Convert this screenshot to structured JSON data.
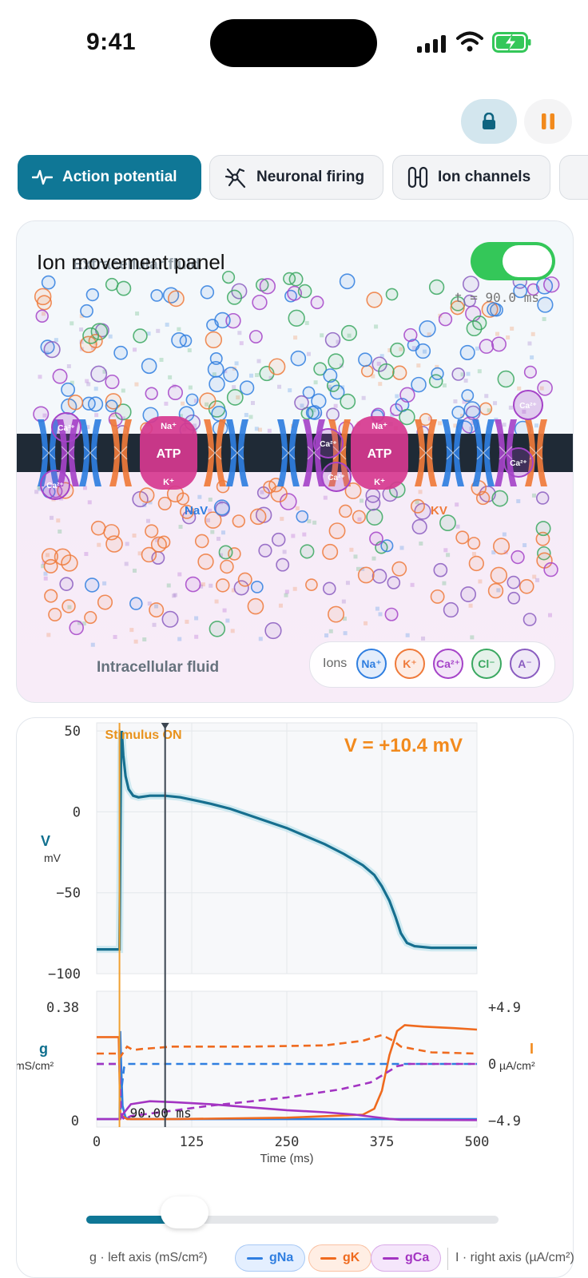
{
  "status_bar": {
    "time": "9:41"
  },
  "controls": {
    "lock_icon": "lock-icon",
    "pause_icon": "pause-icon"
  },
  "tabs": [
    {
      "label": "Action potential",
      "icon": "pulse-icon",
      "active": true
    },
    {
      "label": "Neuronal firing",
      "icon": "neuron-icon",
      "active": false
    },
    {
      "label": "Ion channels",
      "icon": "channel-icon",
      "active": false
    }
  ],
  "ion_panel": {
    "title": "Ion movement panel",
    "extracellular_label": "Extracellular fluid",
    "intracellular_label": "Intracellular fluid",
    "time_readout": "t = 90.0 ms",
    "toggle_on": true,
    "pump_label": "ATP",
    "channel_labels": {
      "nav": "NaV",
      "kv": "KV"
    },
    "pump_ion_labels": {
      "na": "Na⁺",
      "k": "K⁺",
      "ca": "Ca²⁺"
    },
    "legend": {
      "label": "Ions",
      "items": [
        {
          "name": "Na⁺",
          "color": "#2f7ee0"
        },
        {
          "name": "K⁺",
          "color": "#ef7a3a"
        },
        {
          "name": "Ca²⁺",
          "color": "#a543c8"
        },
        {
          "name": "Cl⁻",
          "color": "#3aa860"
        },
        {
          "name": "A⁻",
          "color": "#8a5cc0"
        }
      ]
    },
    "colors": {
      "membrane": "#1f2a36",
      "na": "#2f7ee0",
      "k": "#ef7a3a",
      "ca": "#a543c8",
      "cl": "#3aa860",
      "pump": "#d6388f"
    }
  },
  "chart_data": [
    {
      "type": "line",
      "title": "",
      "ylabel": "V",
      "yunit": "mV",
      "xlim": [
        0,
        500
      ],
      "ylim": [
        -100,
        55
      ],
      "yticks": [
        "50",
        "0",
        "−50",
        "−100"
      ],
      "yticks_values": [
        50,
        0,
        -50,
        -100
      ],
      "readout": "V = +10.4 mV",
      "stimulus_label": "Stimulus ON",
      "stimulus_time": 30,
      "cursor_time": 90,
      "grid": true,
      "series": [
        {
          "values": [
            [
              0,
              -85
            ],
            [
              29,
              -85
            ],
            [
              30,
              -85
            ],
            [
              31,
              -20
            ],
            [
              32,
              40
            ],
            [
              33,
              50
            ],
            [
              35,
              35
            ],
            [
              38,
              22
            ],
            [
              42,
              14
            ],
            [
              48,
              10
            ],
            [
              55,
              9
            ],
            [
              70,
              10
            ],
            [
              90,
              10
            ],
            [
              110,
              9
            ],
            [
              130,
              7
            ],
            [
              150,
              5
            ],
            [
              175,
              2
            ],
            [
              200,
              -2
            ],
            [
              225,
              -6
            ],
            [
              250,
              -10
            ],
            [
              275,
              -15
            ],
            [
              300,
              -20
            ],
            [
              325,
              -26
            ],
            [
              350,
              -33
            ],
            [
              365,
              -39
            ],
            [
              375,
              -46
            ],
            [
              385,
              -55
            ],
            [
              393,
              -65
            ],
            [
              400,
              -75
            ],
            [
              408,
              -81
            ],
            [
              418,
              -83
            ],
            [
              440,
              -84
            ],
            [
              470,
              -84
            ],
            [
              500,
              -84
            ]
          ]
        }
      ]
    },
    {
      "type": "line",
      "ylabel": "g",
      "yunit": "mS/cm²",
      "y2label": "I",
      "y2unit": "µA/cm²",
      "xlabel": "Time (ms)",
      "xlim": [
        0,
        500
      ],
      "ylim": [
        0,
        0.38
      ],
      "y2lim": [
        -4.9,
        4.9
      ],
      "xticks": [
        "0",
        "125",
        "250",
        "375",
        "500"
      ],
      "xticks_values": [
        0,
        125,
        250,
        375,
        500
      ],
      "yticks": [
        "0.38",
        "0"
      ],
      "yticks_values": [
        0.38,
        0
      ],
      "y2ticks": [
        "+4.9",
        "0",
        "−4.9"
      ],
      "y2ticks_values": [
        4.9,
        0,
        -4.9
      ],
      "cursor_label": "90.00 ms",
      "cursor_time": 90,
      "axis_note": "g · left axis (mS/cm²)",
      "axis_note_right": "I · right axis (µA/cm²)",
      "series": [
        {
          "name": "gNa",
          "color": "#2f7ee0",
          "dash": false,
          "axis": "left",
          "values": [
            [
              0,
              0.005
            ],
            [
              30,
              0.005
            ],
            [
              31,
              0.3
            ],
            [
              32,
              0.2
            ],
            [
              34,
              0.05
            ],
            [
              38,
              0.01
            ],
            [
              45,
              0.005
            ],
            [
              500,
              0.005
            ]
          ]
        },
        {
          "name": "gK",
          "color": "#ef6a1e",
          "dash": false,
          "axis": "left",
          "values": [
            [
              0,
              0.28
            ],
            [
              29,
              0.28
            ],
            [
              31,
              0.02
            ],
            [
              40,
              0.005
            ],
            [
              100,
              0.005
            ],
            [
              250,
              0.01
            ],
            [
              350,
              0.02
            ],
            [
              365,
              0.04
            ],
            [
              375,
              0.1
            ],
            [
              385,
              0.22
            ],
            [
              395,
              0.3
            ],
            [
              405,
              0.32
            ],
            [
              430,
              0.315
            ],
            [
              470,
              0.31
            ],
            [
              500,
              0.305
            ]
          ]
        },
        {
          "name": "gCa",
          "color": "#a334c2",
          "dash": false,
          "axis": "left",
          "values": [
            [
              0,
              0.005
            ],
            [
              31,
              0.005
            ],
            [
              34,
              0.02
            ],
            [
              45,
              0.055
            ],
            [
              70,
              0.065
            ],
            [
              100,
              0.062
            ],
            [
              150,
              0.055
            ],
            [
              200,
              0.045
            ],
            [
              250,
              0.035
            ],
            [
              300,
              0.028
            ],
            [
              340,
              0.02
            ],
            [
              365,
              0.012
            ],
            [
              385,
              0.006
            ],
            [
              400,
              0.003
            ],
            [
              500,
              0.002
            ]
          ]
        },
        {
          "name": "INa",
          "color": "#2f7ee0",
          "dash": true,
          "axis": "right",
          "values": [
            [
              0,
              0
            ],
            [
              30,
              0
            ],
            [
              31,
              -4.6
            ],
            [
              33,
              -2
            ],
            [
              36,
              -0.3
            ],
            [
              40,
              0
            ],
            [
              500,
              0
            ]
          ]
        },
        {
          "name": "IK",
          "color": "#ef6a1e",
          "dash": true,
          "axis": "right",
          "values": [
            [
              0,
              0.9
            ],
            [
              29,
              0.9
            ],
            [
              31,
              0.6
            ],
            [
              40,
              1.5
            ],
            [
              48,
              1.2
            ],
            [
              60,
              1.3
            ],
            [
              100,
              1.5
            ],
            [
              200,
              1.5
            ],
            [
              300,
              1.6
            ],
            [
              350,
              2.0
            ],
            [
              375,
              2.5
            ],
            [
              390,
              2.0
            ],
            [
              400,
              1.5
            ],
            [
              440,
              1.0
            ],
            [
              500,
              0.9
            ]
          ]
        },
        {
          "name": "ICa",
          "color": "#a334c2",
          "dash": true,
          "axis": "right",
          "values": [
            [
              0,
              0
            ],
            [
              30,
              0
            ],
            [
              32,
              -4.4
            ],
            [
              36,
              -4.8
            ],
            [
              45,
              -4.5
            ],
            [
              80,
              -4.2
            ],
            [
              150,
              -3.6
            ],
            [
              250,
              -2.9
            ],
            [
              320,
              -2.2
            ],
            [
              360,
              -1.6
            ],
            [
              380,
              -0.8
            ],
            [
              395,
              -0.2
            ],
            [
              410,
              0
            ],
            [
              500,
              0
            ]
          ]
        }
      ]
    }
  ],
  "slider": {
    "value_fraction": 0.18
  },
  "bottom_legend": {
    "label": "g · left axis (mS/cm²)",
    "items": [
      {
        "name": "gNa",
        "color": "#2f7ee0",
        "bg": "#e4efff"
      },
      {
        "name": "gK",
        "color": "#ef6a1e",
        "bg": "#ffeee4"
      },
      {
        "name": "gCa",
        "color": "#a334c2",
        "bg": "#f5e6fb"
      }
    ],
    "right_label": "I · right axis (µA/cm²)"
  }
}
